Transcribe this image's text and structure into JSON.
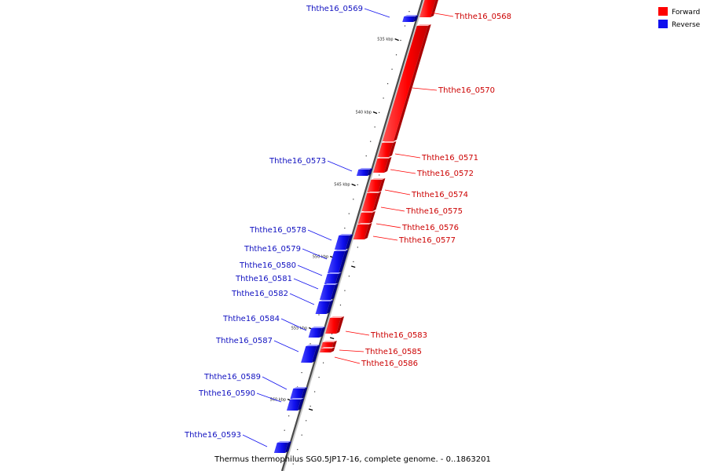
{
  "caption": "Thermus thermophilus SG0.5JP17-16, complete genome. - 0..1863201",
  "legend": {
    "forward": {
      "label": "Forward",
      "color": "#ff0000"
    },
    "reverse": {
      "label": "Reverse",
      "color": "#1010ee"
    }
  },
  "scale_ticks": [
    "535 kbp",
    "540 kbp",
    "545 kbp",
    "550 kbp",
    "555 kbp",
    "560 kbp"
  ],
  "genes": [
    {
      "id": "Ththe16_0568",
      "strand": "forward"
    },
    {
      "id": "Ththe16_0569",
      "strand": "reverse"
    },
    {
      "id": "Ththe16_0570",
      "strand": "forward"
    },
    {
      "id": "Ththe16_0571",
      "strand": "forward"
    },
    {
      "id": "Ththe16_0572",
      "strand": "forward"
    },
    {
      "id": "Ththe16_0573",
      "strand": "reverse"
    },
    {
      "id": "Ththe16_0574",
      "strand": "forward"
    },
    {
      "id": "Ththe16_0575",
      "strand": "forward"
    },
    {
      "id": "Ththe16_0576",
      "strand": "forward"
    },
    {
      "id": "Ththe16_0577",
      "strand": "forward"
    },
    {
      "id": "Ththe16_0578",
      "strand": "reverse"
    },
    {
      "id": "Ththe16_0579",
      "strand": "reverse"
    },
    {
      "id": "Ththe16_0580",
      "strand": "reverse"
    },
    {
      "id": "Ththe16_0581",
      "strand": "reverse"
    },
    {
      "id": "Ththe16_0582",
      "strand": "reverse"
    },
    {
      "id": "Ththe16_0583",
      "strand": "forward"
    },
    {
      "id": "Ththe16_0584",
      "strand": "reverse"
    },
    {
      "id": "Ththe16_0585",
      "strand": "forward"
    },
    {
      "id": "Ththe16_0586",
      "strand": "forward"
    },
    {
      "id": "Ththe16_0587",
      "strand": "reverse"
    },
    {
      "id": "Ththe16_0589",
      "strand": "reverse"
    },
    {
      "id": "Ththe16_0590",
      "strand": "reverse"
    },
    {
      "id": "Ththe16_0593",
      "strand": "reverse"
    }
  ]
}
